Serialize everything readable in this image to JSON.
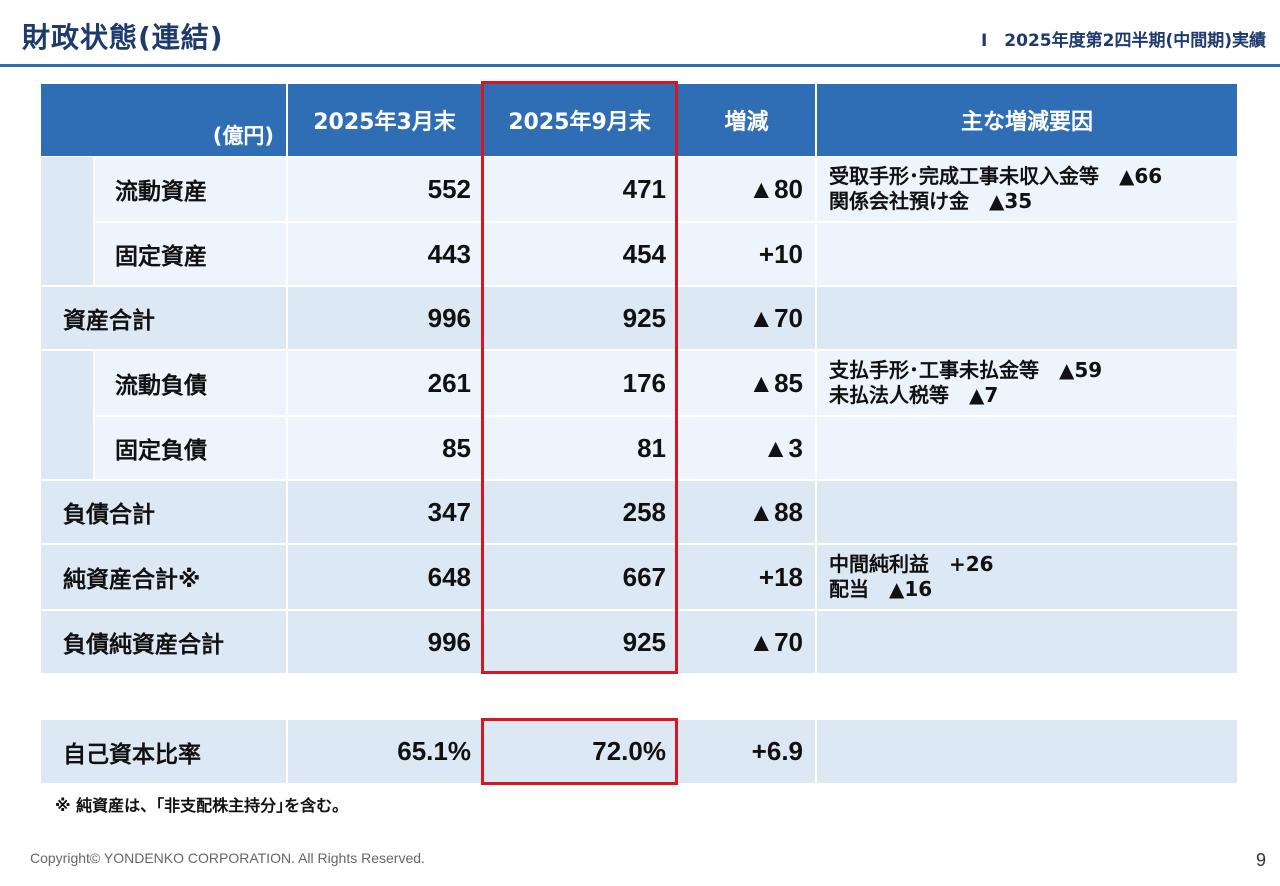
{
  "header": {
    "title": "財政状態(連結)",
    "section": "Ⅰ　2025年度第2四半期(中間期)実績"
  },
  "table": {
    "columns": {
      "unit": "(億円)",
      "mar": "2025年3月末",
      "sep": "2025年9月末",
      "diff": "増減",
      "reason": "主な増減要因"
    },
    "rows": [
      {
        "label": "流動資産",
        "mar": "552",
        "sep": "471",
        "diff": "▲80",
        "reasons": [
          "受取手形･完成工事未収入金等　▲66",
          "関係会社預け金　▲35"
        ]
      },
      {
        "label": "固定資産",
        "mar": "443",
        "sep": "454",
        "diff": "+10",
        "reasons": []
      },
      {
        "label": "資産合計",
        "mar": "996",
        "sep": "925",
        "diff": "▲70",
        "reasons": []
      },
      {
        "label": "流動負債",
        "mar": "261",
        "sep": "176",
        "diff": "▲85",
        "reasons": [
          "支払手形･工事未払金等　▲59",
          "未払法人税等　▲7"
        ]
      },
      {
        "label": "固定負債",
        "mar": "85",
        "sep": "81",
        "diff": "▲3",
        "reasons": []
      },
      {
        "label": "負債合計",
        "mar": "347",
        "sep": "258",
        "diff": "▲88",
        "reasons": []
      },
      {
        "label": "純資産合計※",
        "mar": "648",
        "sep": "667",
        "diff": "+18",
        "reasons": [
          "中間純利益　+26",
          "配当　▲16"
        ]
      },
      {
        "label": "負債純資産合計",
        "mar": "996",
        "sep": "925",
        "diff": "▲70",
        "reasons": []
      }
    ]
  },
  "ratio": {
    "label": "自己資本比率",
    "mar": "65.1%",
    "sep": "72.0%",
    "diff": "+6.9"
  },
  "footnote": "※ 純資産は、｢非支配株主持分｣を含む。",
  "footer": {
    "copyright": "Copyright© YONDENKO CORPORATION. All Rights Reserved.",
    "page_number": "9"
  },
  "colors": {
    "title": "#1f3b6e",
    "header_fill": "#2f6db5",
    "row_light": "#eef4fb",
    "row_dark": "#dde8f5",
    "highlight_border": "#d9161d"
  }
}
